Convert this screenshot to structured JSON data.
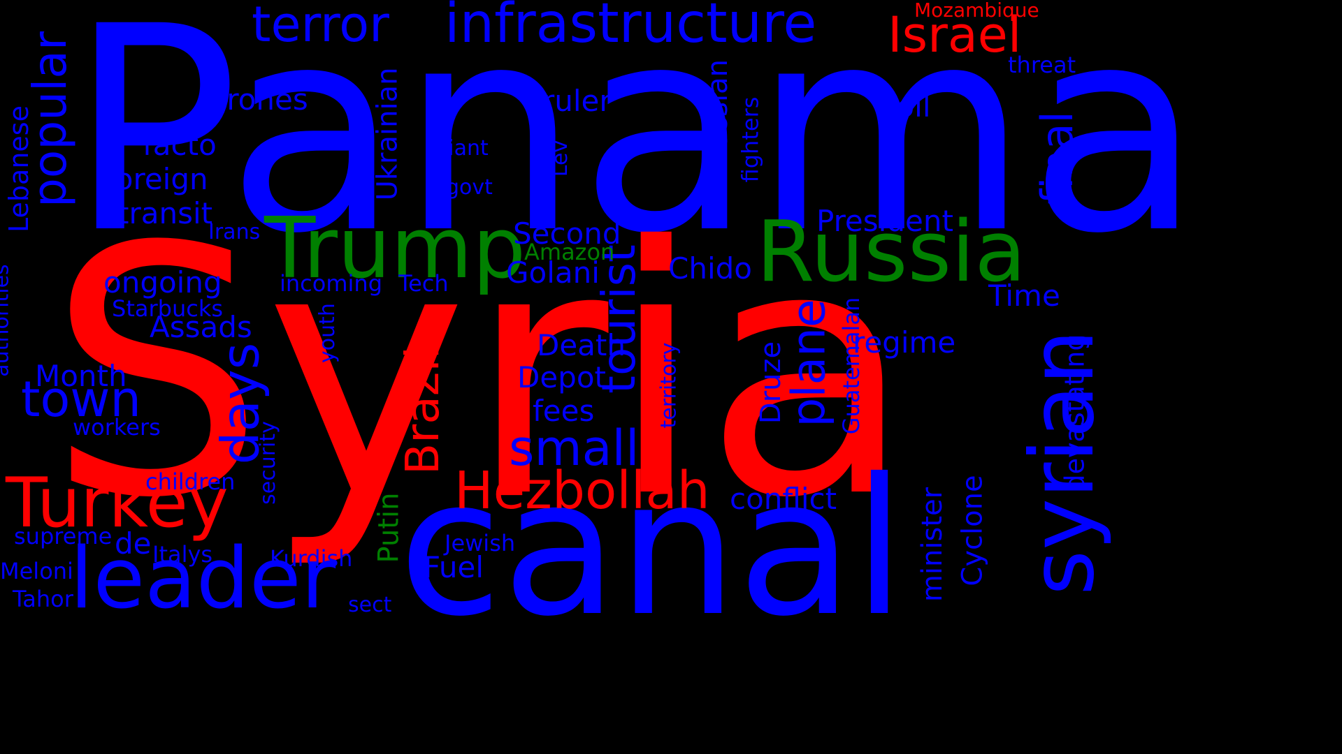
{
  "colors": {
    "background": "#000000",
    "blue": "#0000ff",
    "red": "#ff0000",
    "green": "#008000"
  },
  "words": [
    {
      "text": "Panama",
      "color": "blue",
      "rank": 1
    },
    {
      "text": "Syria",
      "color": "red",
      "rank": 1
    },
    {
      "text": "canal",
      "color": "blue",
      "rank": 2
    },
    {
      "text": "Russia",
      "color": "green",
      "rank": 3
    },
    {
      "text": "Trump",
      "color": "green",
      "rank": 3
    },
    {
      "text": "syrian",
      "color": "blue",
      "rank": 3
    },
    {
      "text": "leader",
      "color": "blue",
      "rank": 3
    },
    {
      "text": "Turkey",
      "color": "red",
      "rank": 4
    },
    {
      "text": "infrastructure",
      "color": "blue",
      "rank": 4
    },
    {
      "text": "Hezbollah",
      "color": "red",
      "rank": 4
    },
    {
      "text": "Israel",
      "color": "red",
      "rank": 5
    },
    {
      "text": "terror",
      "color": "blue",
      "rank": 5
    },
    {
      "text": "popular",
      "color": "blue",
      "rank": 5
    },
    {
      "text": "town",
      "color": "blue",
      "rank": 5
    },
    {
      "text": "days",
      "color": "blue",
      "rank": 5
    },
    {
      "text": "small",
      "color": "blue",
      "rank": 5
    },
    {
      "text": "Brazil",
      "color": "red",
      "rank": 5
    },
    {
      "text": "tourist",
      "color": "blue",
      "rank": 5
    },
    {
      "text": "plane",
      "color": "blue",
      "rank": 5
    },
    {
      "text": "final",
      "color": "blue",
      "rank": 5
    },
    {
      "text": "Mozambique",
      "color": "red",
      "rank": 8
    },
    {
      "text": "Drones",
      "color": "blue",
      "rank": 6
    },
    {
      "text": "ruler",
      "color": "blue",
      "rank": 6
    },
    {
      "text": "toll",
      "color": "blue",
      "rank": 6
    },
    {
      "text": "threat",
      "color": "blue",
      "rank": 7
    },
    {
      "text": "facto",
      "color": "blue",
      "rank": 6
    },
    {
      "text": "foreign",
      "color": "blue",
      "rank": 6
    },
    {
      "text": "transit",
      "color": "blue",
      "rank": 6
    },
    {
      "text": "Lebanese",
      "color": "blue",
      "rank": 6
    },
    {
      "text": "Giant",
      "color": "blue",
      "rank": 7
    },
    {
      "text": "govt",
      "color": "blue",
      "rank": 7
    },
    {
      "text": "Lev",
      "color": "blue",
      "rank": 7
    },
    {
      "text": "Ukrainian",
      "color": "blue",
      "rank": 6
    },
    {
      "text": "Russian",
      "color": "blue",
      "rank": 6
    },
    {
      "text": "fighters",
      "color": "blue",
      "rank": 7
    },
    {
      "text": "President",
      "color": "blue",
      "rank": 6
    },
    {
      "text": "Irans",
      "color": "blue",
      "rank": 7
    },
    {
      "text": "Second",
      "color": "blue",
      "rank": 6
    },
    {
      "text": "Amazon",
      "color": "green",
      "rank": 7
    },
    {
      "text": "Golani",
      "color": "blue",
      "rank": 6
    },
    {
      "text": "Chido",
      "color": "blue",
      "rank": 6
    },
    {
      "text": "ongoing",
      "color": "blue",
      "rank": 6
    },
    {
      "text": "incoming",
      "color": "blue",
      "rank": 7
    },
    {
      "text": "Tech",
      "color": "blue",
      "rank": 7
    },
    {
      "text": "Starbucks",
      "color": "blue",
      "rank": 7
    },
    {
      "text": "Time",
      "color": "blue",
      "rank": 6
    },
    {
      "text": "Assads",
      "color": "blue",
      "rank": 6
    },
    {
      "text": "authorities",
      "color": "blue",
      "rank": 7
    },
    {
      "text": "youth",
      "color": "blue",
      "rank": 7
    },
    {
      "text": "Death",
      "color": "blue",
      "rank": 6
    },
    {
      "text": "regime",
      "color": "blue",
      "rank": 6
    },
    {
      "text": "Guatemalan",
      "color": "blue",
      "rank": 7
    },
    {
      "text": "territory",
      "color": "blue",
      "rank": 7
    },
    {
      "text": "Druze",
      "color": "blue",
      "rank": 6
    },
    {
      "text": "devastating",
      "color": "blue",
      "rank": 6
    },
    {
      "text": "Month",
      "color": "blue",
      "rank": 6
    },
    {
      "text": "Depot",
      "color": "blue",
      "rank": 6
    },
    {
      "text": "fees",
      "color": "blue",
      "rank": 6
    },
    {
      "text": "workers",
      "color": "blue",
      "rank": 7
    },
    {
      "text": "security",
      "color": "blue",
      "rank": 7
    },
    {
      "text": "children",
      "color": "blue",
      "rank": 7
    },
    {
      "text": "conflict",
      "color": "blue",
      "rank": 6
    },
    {
      "text": "minister",
      "color": "blue",
      "rank": 6
    },
    {
      "text": "Cyclone",
      "color": "blue",
      "rank": 6
    },
    {
      "text": "supreme",
      "color": "blue",
      "rank": 7
    },
    {
      "text": "de",
      "color": "blue",
      "rank": 6
    },
    {
      "text": "Italys",
      "color": "blue",
      "rank": 7
    },
    {
      "text": "Putin",
      "color": "green",
      "rank": 6
    },
    {
      "text": "Jewish",
      "color": "blue",
      "rank": 7
    },
    {
      "text": "Meloni",
      "color": "blue",
      "rank": 7
    },
    {
      "text": "Kurdish",
      "color": "blue",
      "rank": 7
    },
    {
      "text": "Fuel",
      "color": "blue",
      "rank": 6
    },
    {
      "text": "Tahor",
      "color": "blue",
      "rank": 7
    },
    {
      "text": "sect",
      "color": "blue",
      "rank": 7
    }
  ]
}
